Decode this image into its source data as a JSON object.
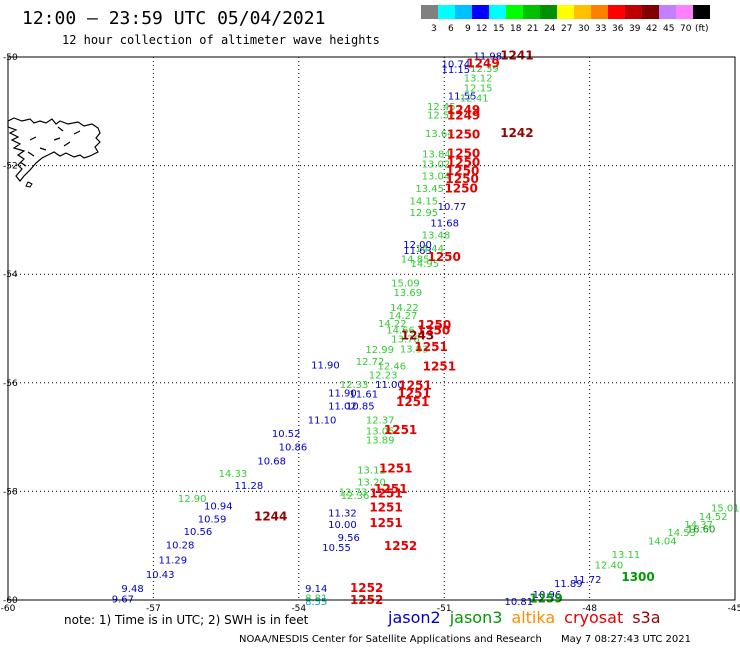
{
  "title": "12:00 – 23:59 UTC 05/04/2021",
  "subtitle": "12 hour collection of altimeter wave heights",
  "colorbar": {
    "colors": [
      "#808080",
      "#00ffff",
      "#00c0ff",
      "#0000ff",
      "#00ffff",
      "#00ff00",
      "#00c000",
      "#009000",
      "#ffff00",
      "#ffc000",
      "#ff8000",
      "#ff0000",
      "#c00000",
      "#800000",
      "#c080ff",
      "#ff80ff",
      "#000000"
    ],
    "labels": [
      "3",
      "6",
      "9",
      "12",
      "15",
      "18",
      "21",
      "24",
      "27",
      "30",
      "33",
      "36",
      "39",
      "42",
      "45",
      "70",
      "(ft)"
    ]
  },
  "map": {
    "lon_min": -60,
    "lon_max": -45,
    "lat_min": -60,
    "lat_max": -50,
    "lon_ticks": [
      "-60",
      "-57",
      "-54",
      "-51",
      "-48",
      "-45"
    ],
    "lat_ticks": [
      "-50",
      "-52",
      "-54",
      "-56",
      "-58",
      "-60"
    ]
  },
  "satellites": [
    {
      "name": "jason2",
      "color": "#0000cc"
    },
    {
      "name": "jason3",
      "color": "#009900"
    },
    {
      "name": "altika",
      "color": "#ff8c00"
    },
    {
      "name": "cryosat",
      "color": "#e60000"
    },
    {
      "name": "s3a",
      "color": "#990000"
    }
  ],
  "observations": [
    {
      "v": "11.98",
      "lon": -50.1,
      "lat": -49.97,
      "c": "#0000cc"
    },
    {
      "v": "10.74",
      "lon": -50.76,
      "lat": -50.12,
      "c": "#0000cc"
    },
    {
      "v": "11.15",
      "lon": -50.76,
      "lat": -50.22,
      "c": "#0000cc"
    },
    {
      "v": "11.55",
      "lon": -50.63,
      "lat": -50.71,
      "c": "#0000cc"
    },
    {
      "v": "10.77",
      "lon": -50.84,
      "lat": -52.74,
      "c": "#0000cc"
    },
    {
      "v": "11.68",
      "lon": -50.99,
      "lat": -53.05,
      "c": "#0000cc"
    },
    {
      "v": "12.00",
      "lon": -51.55,
      "lat": -53.44,
      "c": "#0000cc"
    },
    {
      "v": "11.63",
      "lon": -51.55,
      "lat": -53.55,
      "c": "#0000cc"
    },
    {
      "v": "11.90",
      "lon": -53.45,
      "lat": -55.66,
      "c": "#0000cc"
    },
    {
      "v": "11.00",
      "lon": -52.13,
      "lat": -56.02,
      "c": "#0000cc"
    },
    {
      "v": "11.90",
      "lon": -53.1,
      "lat": -56.18,
      "c": "#0000cc"
    },
    {
      "v": "11.61",
      "lon": -52.66,
      "lat": -56.2,
      "c": "#0000cc"
    },
    {
      "v": "11.02",
      "lon": -53.1,
      "lat": -56.42,
      "c": "#0000cc"
    },
    {
      "v": "10.85",
      "lon": -52.73,
      "lat": -56.42,
      "c": "#0000cc"
    },
    {
      "v": "11.10",
      "lon": -53.52,
      "lat": -56.68,
      "c": "#0000cc"
    },
    {
      "v": "10.52",
      "lon": -54.26,
      "lat": -56.92,
      "c": "#0000cc"
    },
    {
      "v": "10.86",
      "lon": -54.12,
      "lat": -57.17,
      "c": "#0000cc"
    },
    {
      "v": "10.68",
      "lon": -54.56,
      "lat": -57.43,
      "c": "#0000cc"
    },
    {
      "v": "11.28",
      "lon": -55.03,
      "lat": -57.88,
      "c": "#0000cc"
    },
    {
      "v": "10.94",
      "lon": -55.66,
      "lat": -58.26,
      "c": "#0000cc"
    },
    {
      "v": "10.59",
      "lon": -55.79,
      "lat": -58.5,
      "c": "#0000cc"
    },
    {
      "v": "11.32",
      "lon": -53.1,
      "lat": -58.39,
      "c": "#0000cc"
    },
    {
      "v": "10.00",
      "lon": -53.1,
      "lat": -58.6,
      "c": "#0000cc"
    },
    {
      "v": "10.56",
      "lon": -56.08,
      "lat": -58.73,
      "c": "#0000cc"
    },
    {
      "v": "9.56",
      "lon": -52.97,
      "lat": -58.84,
      "c": "#0000cc"
    },
    {
      "v": "10.28",
      "lon": -56.45,
      "lat": -58.98,
      "c": "#0000cc"
    },
    {
      "v": "10.55",
      "lon": -53.22,
      "lat": -59.02,
      "c": "#0000cc"
    },
    {
      "v": "11.29",
      "lon": -56.6,
      "lat": -59.25,
      "c": "#0000cc"
    },
    {
      "v": "10.43",
      "lon": -56.86,
      "lat": -59.52,
      "c": "#0000cc"
    },
    {
      "v": "9.48",
      "lon": -57.43,
      "lat": -59.78,
      "c": "#0000cc"
    },
    {
      "v": "9.14",
      "lon": -53.64,
      "lat": -59.78,
      "c": "#0000cc"
    },
    {
      "v": "9.67",
      "lon": -57.63,
      "lat": -59.97,
      "c": "#0000cc"
    },
    {
      "v": "11.72",
      "lon": -48.05,
      "lat": -59.61,
      "c": "#0000cc"
    },
    {
      "v": "11.89",
      "lon": -48.44,
      "lat": -59.69,
      "c": "#0000cc"
    },
    {
      "v": "10.96",
      "lon": -48.88,
      "lat": -59.89,
      "c": "#0000cc"
    },
    {
      "v": "10.81",
      "lon": -49.46,
      "lat": -60.02,
      "c": "#0000cc"
    },
    {
      "v": "12.39",
      "lon": -50.17,
      "lat": -50.2,
      "c": "#33cc33"
    },
    {
      "v": "13.12",
      "lon": -50.3,
      "lat": -50.38,
      "c": "#33cc33"
    },
    {
      "v": "12.15",
      "lon": -50.3,
      "lat": -50.56,
      "c": "#33cc33"
    },
    {
      "v": "12.41",
      "lon": -50.38,
      "lat": -50.75,
      "c": "#33cc33"
    },
    {
      "v": "12.45",
      "lon": -51.06,
      "lat": -50.9,
      "c": "#33cc33"
    },
    {
      "v": "12.52",
      "lon": -51.06,
      "lat": -51.06,
      "c": "#33cc33"
    },
    {
      "v": "13.64",
      "lon": -51.1,
      "lat": -51.4,
      "c": "#33cc33"
    },
    {
      "v": "13.84",
      "lon": -51.16,
      "lat": -51.78,
      "c": "#33cc33"
    },
    {
      "v": "13.02",
      "lon": -51.17,
      "lat": -51.96,
      "c": "#33cc33"
    },
    {
      "v": "13.04",
      "lon": -51.17,
      "lat": -52.18,
      "c": "#33cc33"
    },
    {
      "v": "13.45",
      "lon": -51.3,
      "lat": -52.41,
      "c": "#33cc33"
    },
    {
      "v": "14.15",
      "lon": -51.42,
      "lat": -52.64,
      "c": "#33cc33"
    },
    {
      "v": "12.95",
      "lon": -51.42,
      "lat": -52.85,
      "c": "#33cc33"
    },
    {
      "v": "13.48",
      "lon": -51.17,
      "lat": -53.27,
      "c": "#33cc33"
    },
    {
      "v": "14.44",
      "lon": -51.3,
      "lat": -53.52,
      "c": "#33cc33"
    },
    {
      "v": "14.85",
      "lon": -51.6,
      "lat": -53.71,
      "c": "#33cc33"
    },
    {
      "v": "14.95",
      "lon": -51.4,
      "lat": -53.79,
      "c": "#33cc33"
    },
    {
      "v": "15.09",
      "lon": -51.8,
      "lat": -54.15,
      "c": "#33cc33"
    },
    {
      "v": "13.69",
      "lon": -51.75,
      "lat": -54.33,
      "c": "#33cc33"
    },
    {
      "v": "14.22",
      "lon": -51.82,
      "lat": -54.6,
      "c": "#33cc33"
    },
    {
      "v": "14.27",
      "lon": -51.85,
      "lat": -54.75,
      "c": "#33cc33"
    },
    {
      "v": "14.22",
      "lon": -52.07,
      "lat": -54.9,
      "c": "#33cc33"
    },
    {
      "v": "14.66",
      "lon": -51.9,
      "lat": -55.02,
      "c": "#33cc33"
    },
    {
      "v": "13.76",
      "lon": -51.8,
      "lat": -55.18,
      "c": "#33cc33"
    },
    {
      "v": "12.99",
      "lon": -52.33,
      "lat": -55.38,
      "c": "#33cc33"
    },
    {
      "v": "13.93",
      "lon": -51.62,
      "lat": -55.37,
      "c": "#33cc33"
    },
    {
      "v": "12.72",
      "lon": -52.53,
      "lat": -55.6,
      "c": "#33cc33"
    },
    {
      "v": "12.46",
      "lon": -52.08,
      "lat": -55.68,
      "c": "#33cc33"
    },
    {
      "v": "12.23",
      "lon": -52.26,
      "lat": -55.85,
      "c": "#33cc33"
    },
    {
      "v": "12.33",
      "lon": -52.86,
      "lat": -56.02,
      "c": "#33cc33"
    },
    {
      "v": "12.37",
      "lon": -52.32,
      "lat": -56.68,
      "c": "#33cc33"
    },
    {
      "v": "13.05",
      "lon": -52.32,
      "lat": -56.88,
      "c": "#33cc33"
    },
    {
      "v": "13.89",
      "lon": -52.32,
      "lat": -57.04,
      "c": "#33cc33"
    },
    {
      "v": "13.12",
      "lon": -52.5,
      "lat": -57.6,
      "c": "#33cc33"
    },
    {
      "v": "14.33",
      "lon": -55.36,
      "lat": -57.66,
      "c": "#33cc33"
    },
    {
      "v": "13.20",
      "lon": -52.5,
      "lat": -57.82,
      "c": "#33cc33"
    },
    {
      "v": "12.73",
      "lon": -52.88,
      "lat": -58.0,
      "c": "#33cc33"
    },
    {
      "v": "12.36",
      "lon": -52.84,
      "lat": -58.07,
      "c": "#33cc33"
    },
    {
      "v": "12.90",
      "lon": -56.2,
      "lat": -58.12,
      "c": "#33cc33"
    },
    {
      "v": "15.01",
      "lon": -45.2,
      "lat": -58.3,
      "c": "#33cc33"
    },
    {
      "v": "14.52",
      "lon": -45.45,
      "lat": -58.45,
      "c": "#33cc33"
    },
    {
      "v": "14.37",
      "lon": -45.75,
      "lat": -58.6,
      "c": "#33cc33"
    },
    {
      "v": "14.53",
      "lon": -46.1,
      "lat": -58.75,
      "c": "#33cc33"
    },
    {
      "v": "14.04",
      "lon": -46.5,
      "lat": -58.9,
      "c": "#33cc33"
    },
    {
      "v": "13.11",
      "lon": -47.25,
      "lat": -59.15,
      "c": "#33cc33"
    },
    {
      "v": "12.40",
      "lon": -47.6,
      "lat": -59.35,
      "c": "#33cc33"
    },
    {
      "v": "8.81",
      "lon": -53.64,
      "lat": -59.95,
      "c": "#33cc33"
    },
    {
      "v": "16.60",
      "lon": -45.7,
      "lat": -58.68,
      "c": "#009900"
    },
    {
      "v": "1300",
      "lon": -47.0,
      "lat": -59.58,
      "c": "#009900",
      "b": true
    },
    {
      "v": "1259",
      "lon": -48.9,
      "lat": -59.97,
      "c": "#009900",
      "b": true
    },
    {
      "v": "8.55",
      "lon": -53.64,
      "lat": -60.02,
      "c": "#00aacc"
    },
    {
      "v": "1241",
      "lon": -49.5,
      "lat": -49.97,
      "c": "#990000",
      "b": true
    },
    {
      "v": "1249",
      "lon": -50.2,
      "lat": -50.12,
      "c": "#e60000",
      "b": true
    },
    {
      "v": "1249",
      "lon": -50.6,
      "lat": -50.98,
      "c": "#e60000",
      "b": true
    },
    {
      "v": "1249",
      "lon": -50.6,
      "lat": -51.08,
      "c": "#e60000",
      "b": true
    },
    {
      "v": "1242",
      "lon": -49.5,
      "lat": -51.4,
      "c": "#990000",
      "b": true
    },
    {
      "v": "1250",
      "lon": -50.6,
      "lat": -51.43,
      "c": "#e60000",
      "b": true
    },
    {
      "v": "1250",
      "lon": -50.6,
      "lat": -51.78,
      "c": "#e60000",
      "b": true
    },
    {
      "v": "1250",
      "lon": -50.6,
      "lat": -51.94,
      "c": "#e60000",
      "b": true
    },
    {
      "v": "1250",
      "lon": -50.62,
      "lat": -52.1,
      "c": "#e60000",
      "b": true
    },
    {
      "v": "1250",
      "lon": -50.63,
      "lat": -52.25,
      "c": "#e60000",
      "b": true
    },
    {
      "v": "1250",
      "lon": -50.65,
      "lat": -52.42,
      "c": "#e60000",
      "b": true
    },
    {
      "v": "1250",
      "lon": -51.0,
      "lat": -53.68,
      "c": "#e60000",
      "b": true
    },
    {
      "v": "1250",
      "lon": -51.2,
      "lat": -54.94,
      "c": "#e60000",
      "b": true
    },
    {
      "v": "1250",
      "lon": -51.22,
      "lat": -55.04,
      "c": "#e60000",
      "b": true
    },
    {
      "v": "1243",
      "lon": -51.55,
      "lat": -55.13,
      "c": "#990000",
      "b": true
    },
    {
      "v": "1251",
      "lon": -51.27,
      "lat": -55.34,
      "c": "#e60000",
      "b": true
    },
    {
      "v": "1251",
      "lon": -51.1,
      "lat": -55.7,
      "c": "#e60000",
      "b": true
    },
    {
      "v": "1251",
      "lon": -51.6,
      "lat": -56.05,
      "c": "#e60000",
      "b": true
    },
    {
      "v": "1251",
      "lon": -51.62,
      "lat": -56.2,
      "c": "#e60000",
      "b": true
    },
    {
      "v": "1251",
      "lon": -51.65,
      "lat": -56.35,
      "c": "#e60000",
      "b": true
    },
    {
      "v": "1251",
      "lon": -51.9,
      "lat": -56.87,
      "c": "#e60000",
      "b": true
    },
    {
      "v": "1251",
      "lon": -52.0,
      "lat": -57.58,
      "c": "#e60000",
      "b": true
    },
    {
      "v": "1251",
      "lon": -52.1,
      "lat": -57.96,
      "c": "#e60000",
      "b": true
    },
    {
      "v": "1251",
      "lon": -52.2,
      "lat": -58.04,
      "c": "#e60000",
      "b": true
    },
    {
      "v": "1244",
      "lon": -54.58,
      "lat": -58.46,
      "c": "#990000",
      "b": true
    },
    {
      "v": "1251",
      "lon": -52.2,
      "lat": -58.3,
      "c": "#e60000",
      "b": true
    },
    {
      "v": "1251",
      "lon": -52.2,
      "lat": -58.58,
      "c": "#e60000",
      "b": true
    },
    {
      "v": "1252",
      "lon": -51.9,
      "lat": -59.01,
      "c": "#e60000",
      "b": true
    },
    {
      "v": "1252",
      "lon": -52.6,
      "lat": -59.78,
      "c": "#e60000",
      "b": true
    },
    {
      "v": "1252",
      "lon": -52.6,
      "lat": -60.0,
      "c": "#e60000",
      "b": true
    }
  ],
  "note": "note: 1) Time is in UTC; 2) SWH is in feet",
  "credit": {
    "org": "NOAA/NESDIS Center for Satellite Applications and Research",
    "timestamp": "May  7 08:27:43 UTC 2021"
  }
}
